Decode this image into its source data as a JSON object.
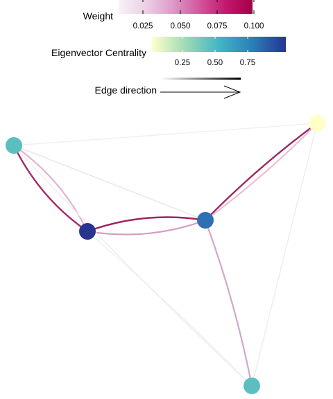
{
  "legend": {
    "weight": {
      "title": "Weight",
      "ticks": [
        "0.025",
        "0.050",
        "0.075",
        "0.100"
      ],
      "colors": [
        "#f7f1f7",
        "#ecd1e6",
        "#dc9cc9",
        "#d3579e",
        "#c2186e",
        "#a30045"
      ]
    },
    "centrality": {
      "title": "Eigenvector Centrality",
      "ticks": [
        "0.25",
        "0.50",
        "0.75"
      ],
      "colors": [
        "#ffffcc",
        "#a1dab4",
        "#41b6c4",
        "#2c7fb8",
        "#253494"
      ]
    },
    "direction": {
      "title": "Edge direction"
    }
  },
  "network": {
    "nodes": [
      {
        "id": "n1",
        "color": "#5bbfc0"
      },
      {
        "id": "n2",
        "color": "#ffffc6"
      },
      {
        "id": "n3",
        "color": "#28358f"
      },
      {
        "id": "n4",
        "color": "#2f6fb3"
      },
      {
        "id": "n5",
        "color": "#5bbfc0"
      }
    ],
    "edges": [
      {
        "from": "n1",
        "to": "n3",
        "color": "#e2b3d2"
      },
      {
        "from": "n3",
        "to": "n1",
        "color": "#a22a6b"
      },
      {
        "from": "n3",
        "to": "n4",
        "color": "#9c255f"
      },
      {
        "from": "n4",
        "to": "n3",
        "color": "#d79bc0"
      },
      {
        "from": "n4",
        "to": "n2",
        "color": "#9b2a62"
      },
      {
        "from": "n2",
        "to": "n4",
        "color": "#e7c0d8"
      },
      {
        "from": "n4",
        "to": "n5",
        "color": "#d8a4c6"
      },
      {
        "from": "n1",
        "to": "n4",
        "color": "#ede6f0"
      },
      {
        "from": "n1",
        "to": "n2",
        "color": "#f2eff4"
      },
      {
        "from": "n2",
        "to": "n5",
        "color": "#f0edf3"
      },
      {
        "from": "n3",
        "to": "n5",
        "color": "#f3eff5"
      },
      {
        "from": "n1",
        "to": "n5",
        "color": "#f1edf4"
      }
    ]
  }
}
